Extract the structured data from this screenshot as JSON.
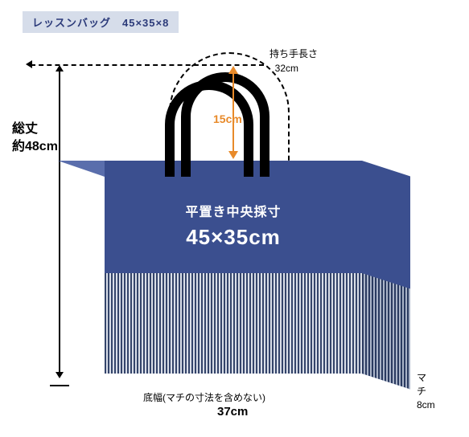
{
  "title": "レッスンバッグ　45×35×8",
  "colors": {
    "title_bg": "#d6ddea",
    "title_fg": "#2c3b7a",
    "bag_top": "#3b4f8f",
    "bag_topface": "#5a6eac",
    "stripe_a": "#34446a",
    "stripe_b": "#d9dee8",
    "accent": "#e88a2a"
  },
  "dims": {
    "total_height_label": "総丈",
    "total_height_value": "約48cm",
    "handle_length_label": "持ち手長さ",
    "handle_length_value": "32cm",
    "inner_drop": "15cm",
    "flat_measure_label": "平置き中央採寸",
    "flat_measure_value": "45×35cm",
    "bottom_width_label": "底幅(マチの寸法を含めない)",
    "bottom_width_value": "37cm",
    "gusset_label": "マチ",
    "gusset_value": "8cm"
  }
}
